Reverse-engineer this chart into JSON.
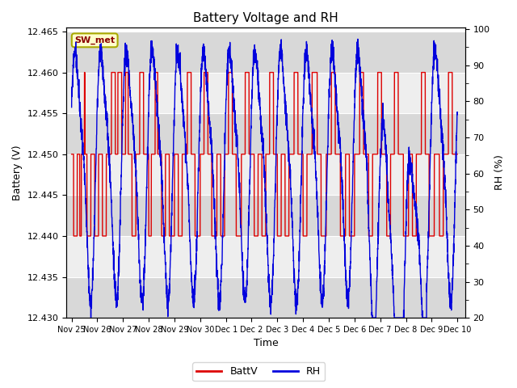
{
  "title": "Battery Voltage and RH",
  "xlabel": "Time",
  "ylabel_left": "Battery (V)",
  "ylabel_right": "RH (%)",
  "station_label": "SW_met",
  "ylim_left": [
    12.43,
    12.4655
  ],
  "ylim_right": [
    20,
    100.5
  ],
  "yticks_left": [
    12.43,
    12.435,
    12.44,
    12.445,
    12.45,
    12.455,
    12.46,
    12.465
  ],
  "yticks_right": [
    20,
    30,
    40,
    50,
    60,
    70,
    80,
    90,
    100
  ],
  "batt_color": "#dd0000",
  "rh_color": "#0000dd",
  "bg_color": "#ffffff",
  "band_dark": "#d8d8d8",
  "band_light": "#eeeeee",
  "legend_batt": "BattV",
  "legend_rh": "RH",
  "x_tick_labels": [
    "Nov 25",
    "Nov 26",
    "Nov 27",
    "Nov 28",
    "Nov 29",
    "Nov 30",
    "Dec 1",
    "Dec 2",
    "Dec 3",
    "Dec 4",
    "Dec 5",
    "Dec 6",
    "Dec 7",
    "Dec 8",
    "Dec 9",
    "Dec 10"
  ],
  "x_tick_positions": [
    0,
    1,
    2,
    3,
    4,
    5,
    6,
    7,
    8,
    9,
    10,
    11,
    12,
    13,
    14,
    15
  ],
  "xlim": [
    -0.2,
    15.3
  ]
}
